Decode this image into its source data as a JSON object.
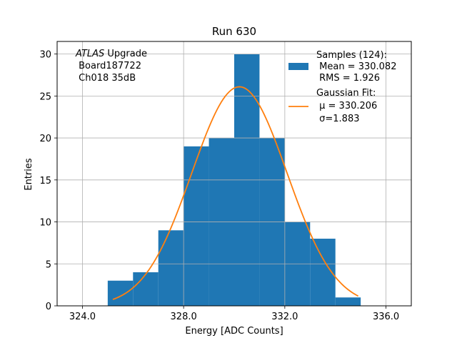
{
  "chart_data": {
    "type": "bar",
    "title": "Run 630",
    "xlabel": "Energy [ADC Counts]",
    "ylabel": "Entries",
    "xlim": [
      323.0,
      337.0
    ],
    "ylim": [
      0,
      31.5
    ],
    "xticks": [
      324.0,
      328.0,
      332.0,
      336.0
    ],
    "xtick_labels": [
      "324.0",
      "328.0",
      "332.0",
      "336.0"
    ],
    "yticks": [
      0,
      5,
      10,
      15,
      20,
      25,
      30
    ],
    "ytick_labels": [
      "0",
      "5",
      "10",
      "15",
      "20",
      "25",
      "30"
    ],
    "grid": true,
    "histogram": {
      "name": "Samples",
      "bin_edges": [
        325,
        326,
        327,
        328,
        329,
        330,
        331,
        332,
        333,
        334,
        335
      ],
      "counts": [
        3,
        4,
        9,
        19,
        20,
        30,
        20,
        10,
        8,
        1
      ],
      "color": "#1f77b4"
    },
    "fit": {
      "name": "Gaussian Fit",
      "type": "gaussian",
      "mu": 330.206,
      "sigma": 1.883,
      "amplitude": 26.1,
      "x_range": [
        325.2,
        334.9
      ],
      "color": "#ff7f0e"
    },
    "legend": {
      "position": "top-right",
      "entries": [
        {
          "kind": "patch",
          "lines": [
            "Samples (124):",
            " Mean = 330.082",
            " RMS = 1.926"
          ]
        },
        {
          "kind": "line",
          "lines": [
            "Gaussian Fit:",
            " μ = 330.206",
            " σ=1.883"
          ]
        }
      ]
    },
    "annotation": {
      "italic_word": "ATLAS",
      "word": " Upgrade",
      "lines": [
        " Board187722",
        " Ch018 35dB"
      ]
    }
  }
}
